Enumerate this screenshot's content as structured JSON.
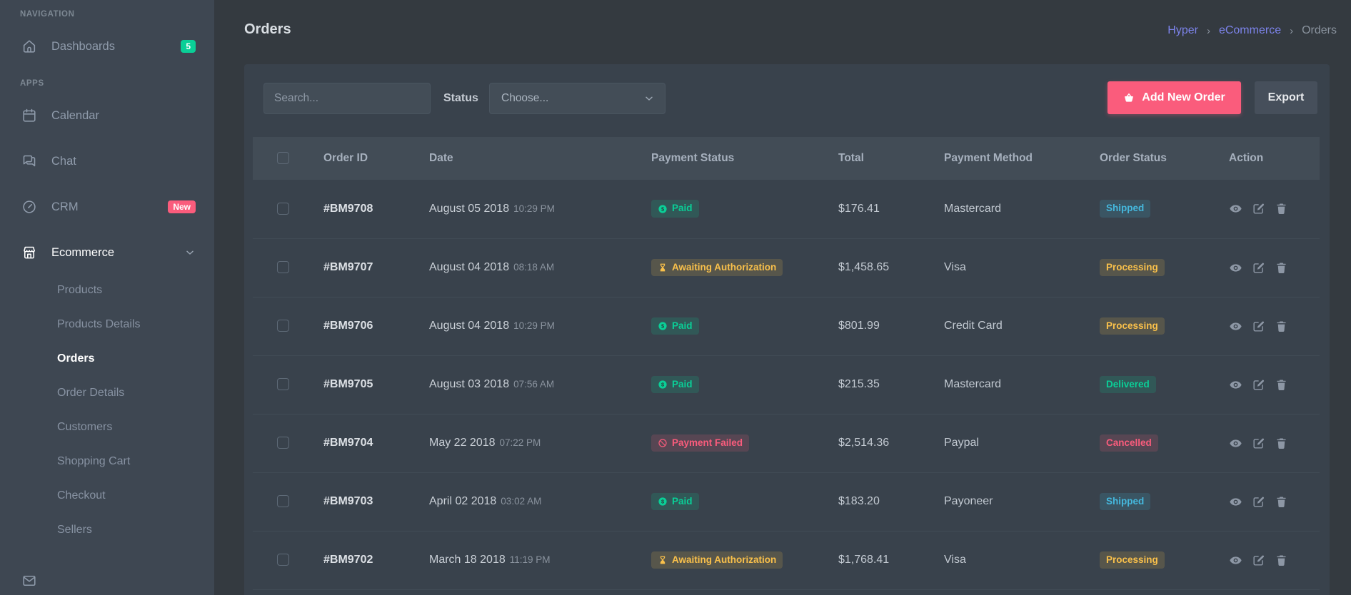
{
  "page": {
    "title": "Orders"
  },
  "breadcrumb": {
    "separator": "›",
    "items": [
      {
        "label": "Hyper",
        "active": false
      },
      {
        "label": "eCommerce",
        "active": false
      },
      {
        "label": "Orders",
        "active": true
      }
    ]
  },
  "sidebar": {
    "sections": [
      {
        "label": "NAVIGATION",
        "items": [
          {
            "label": "Dashboards",
            "icon": "home",
            "badge": "5",
            "badge_color": "#0acf97"
          }
        ]
      },
      {
        "label": "APPS",
        "items": [
          {
            "label": "Calendar",
            "icon": "calendar"
          },
          {
            "label": "Chat",
            "icon": "chat"
          },
          {
            "label": "CRM",
            "icon": "gauge",
            "badge": "New",
            "badge_color": "#fa5c7c"
          },
          {
            "label": "Ecommerce",
            "icon": "store",
            "active": true,
            "expanded": true,
            "children": [
              {
                "label": "Products",
                "active": false
              },
              {
                "label": "Products Details",
                "active": false
              },
              {
                "label": "Orders",
                "active": true
              },
              {
                "label": "Order Details",
                "active": false
              },
              {
                "label": "Customers",
                "active": false
              },
              {
                "label": "Shopping Cart",
                "active": false
              },
              {
                "label": "Checkout",
                "active": false
              },
              {
                "label": "Sellers",
                "active": false
              }
            ]
          }
        ]
      }
    ],
    "partial_item": {
      "icon": "envelope",
      "label": ""
    }
  },
  "toolbar": {
    "search_placeholder": "Search...",
    "status_label": "Status",
    "status_value": "Choose...",
    "add_order_label": "Add New Order",
    "export_label": "Export"
  },
  "table": {
    "columns": [
      "Order ID",
      "Date",
      "Payment Status",
      "Total",
      "Payment Method",
      "Order Status",
      "Action"
    ],
    "rows": [
      {
        "order_id": "#BM9708",
        "date": "August 05 2018",
        "time": "10:29 PM",
        "payment_status": {
          "label": "Paid",
          "type": "success",
          "icon": "cash"
        },
        "total": "$176.41",
        "payment_method": "Mastercard",
        "order_status": {
          "label": "Shipped",
          "type": "info"
        }
      },
      {
        "order_id": "#BM9707",
        "date": "August 04 2018",
        "time": "08:18 AM",
        "payment_status": {
          "label": "Awaiting Authorization",
          "type": "warning",
          "icon": "hourglass"
        },
        "total": "$1,458.65",
        "payment_method": "Visa",
        "order_status": {
          "label": "Processing",
          "type": "warning"
        }
      },
      {
        "order_id": "#BM9706",
        "date": "August 04 2018",
        "time": "10:29 PM",
        "payment_status": {
          "label": "Paid",
          "type": "success",
          "icon": "cash"
        },
        "total": "$801.99",
        "payment_method": "Credit Card",
        "order_status": {
          "label": "Processing",
          "type": "warning"
        }
      },
      {
        "order_id": "#BM9705",
        "date": "August 03 2018",
        "time": "07:56 AM",
        "payment_status": {
          "label": "Paid",
          "type": "success",
          "icon": "cash"
        },
        "total": "$215.35",
        "payment_method": "Mastercard",
        "order_status": {
          "label": "Delivered",
          "type": "success"
        }
      },
      {
        "order_id": "#BM9704",
        "date": "May 22 2018",
        "time": "07:22 PM",
        "payment_status": {
          "label": "Payment Failed",
          "type": "danger",
          "icon": "cancel"
        },
        "total": "$2,514.36",
        "payment_method": "Paypal",
        "order_status": {
          "label": "Cancelled",
          "type": "danger"
        }
      },
      {
        "order_id": "#BM9703",
        "date": "April 02 2018",
        "time": "03:02 AM",
        "payment_status": {
          "label": "Paid",
          "type": "success",
          "icon": "cash"
        },
        "total": "$183.20",
        "payment_method": "Payoneer",
        "order_status": {
          "label": "Shipped",
          "type": "info"
        }
      },
      {
        "order_id": "#BM9702",
        "date": "March 18 2018",
        "time": "11:19 PM",
        "payment_status": {
          "label": "Awaiting Authorization",
          "type": "warning",
          "icon": "hourglass"
        },
        "total": "$1,768.41",
        "payment_method": "Visa",
        "order_status": {
          "label": "Processing",
          "type": "warning"
        }
      }
    ],
    "actions": [
      "view",
      "edit",
      "delete"
    ]
  },
  "colors": {
    "success": "#0acf97",
    "warning": "#f9c04b",
    "danger": "#fa5c7c",
    "info": "#45b8dd",
    "primary": "#7c83ea",
    "sidebar_bg": "#3e4752",
    "body_bg": "#343a40",
    "card_bg": "#39424c"
  }
}
